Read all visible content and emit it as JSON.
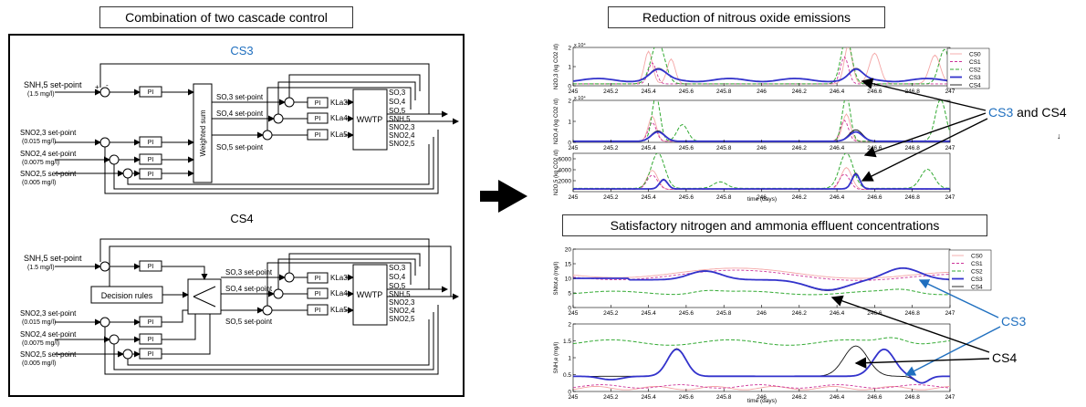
{
  "left_title": "Combination of two cascade control",
  "cs3_diagram": {
    "title": "CS3",
    "title_color": "#1f6fbf",
    "inputs": [
      {
        "name": "SNH,5 set-point",
        "value": "(1.5 mg/l)"
      },
      {
        "name": "SNO2,3 set-point",
        "value": "(0.015 mg/l)"
      },
      {
        "name": "SNO2,4 set-point",
        "value": "(0.0075 mg/l)"
      },
      {
        "name": "SNO2,5 set-point",
        "value": "(0.005 mg/l)"
      }
    ],
    "controller_label": "PI",
    "mixer_label": "Weighted sum",
    "setpoints": [
      "SO,3 set-point",
      "SO,4 set-point",
      "SO,5 set-point"
    ],
    "kla": [
      "KLa3",
      "KLa4",
      "KLa5"
    ],
    "plant_label": "WWTP",
    "outputs": [
      "SO,3",
      "SO,4",
      "SO,5",
      "SNH,5",
      "SNO2,3",
      "SNO2,4",
      "SNO2,5"
    ]
  },
  "cs4_diagram": {
    "title": "CS4",
    "inputs": [
      {
        "name": "SNH,5 set-point",
        "value": "(1.5 mg/l)"
      },
      {
        "name": "SNO2,3 set-point",
        "value": "(0.015 mg/l)"
      },
      {
        "name": "SNO2,4 set-point",
        "value": "(0.0075 mg/l)"
      },
      {
        "name": "SNO2,5 set-point",
        "value": "(0.005 mg/l)"
      }
    ],
    "controller_label": "PI",
    "decision_label": "Decision rules",
    "setpoints": [
      "SO,3 set-point",
      "SO,4 set-point",
      "SO,5 set-point"
    ],
    "kla": [
      "KLa3",
      "KLa4",
      "KLa5"
    ],
    "plant_label": "WWTP",
    "outputs": [
      "SO,3",
      "SO,4",
      "SO,5",
      "SNH,5",
      "SNO2,3",
      "SNO2,4",
      "SNO2,5"
    ]
  },
  "right_title_top": "Reduction of nitrous oxide emissions",
  "right_title_bottom": "Satisfactory nitrogen and ammonia effluent concentrations",
  "legend": [
    "CS0",
    "CS1",
    "CS2",
    "CS3",
    "CS4"
  ],
  "x_ticks": [
    "245",
    "245.2",
    "245.4",
    "245.6",
    "245.8",
    "246",
    "246.2",
    "246.4",
    "246.6",
    "246.8",
    "247"
  ],
  "xlabel": "time (days)",
  "n2o_panels": [
    {
      "ylabel": "N2O,3 (kg CO2 /d)",
      "ymax_label": "x 10⁴",
      "ticks": [
        "0",
        "1",
        "2"
      ]
    },
    {
      "ylabel": "N2O,4 (kg CO2 /d)",
      "ymax_label": "x 10⁴",
      "ticks": [
        "0",
        "1",
        "2"
      ]
    },
    {
      "ylabel": "N2O,5 (kg CO2 /d)",
      "ymax_label": "",
      "ticks": [
        "2000",
        "4000",
        "6000"
      ]
    }
  ],
  "n_panel": {
    "ylabel": "SNtot,e (mg/l)",
    "ticks": [
      "0",
      "5",
      "10",
      "15",
      "20"
    ]
  },
  "nh_panel": {
    "ylabel": "SNH,e (mg/l)",
    "ticks": [
      "0",
      "0.5",
      "1",
      "1.5",
      "2"
    ]
  },
  "annotations": {
    "cs3_and": "CS3",
    "and_cs4": " and CS4",
    "cs3": "CS3",
    "cs4": "CS4"
  },
  "colors": {
    "cs0": "#f4a6a6",
    "cs1": "#cc3399",
    "cs2": "#33aa33",
    "cs3": "#3333cc",
    "cs4": "#111111",
    "blue": "#1f6fbf"
  }
}
